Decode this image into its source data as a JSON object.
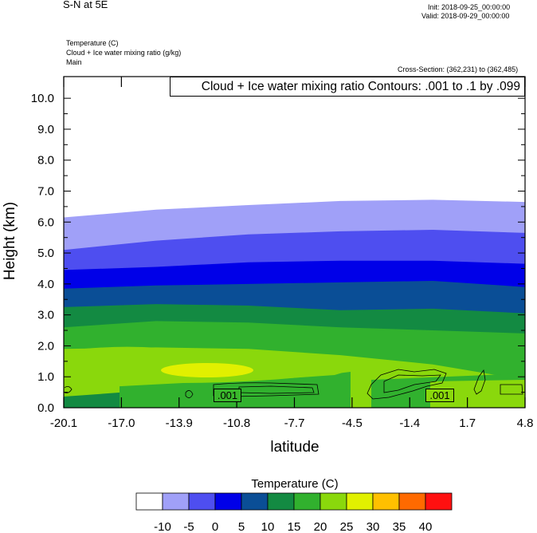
{
  "header": {
    "title": "S-N at 5E",
    "init": "Init: 2018-09-25_00:00:00",
    "valid": "Valid: 2018-09-29_00:00:00",
    "field1": "Temperature   (C)",
    "field2": "Cloud + Ice water mixing ratio   (g/kg)",
    "field3": "Main",
    "cross_section": "Cross-Section: (362,231) to (362,485)"
  },
  "chart_data": {
    "type": "area",
    "title": "Cloud + Ice water mixing ratio Contours: .001 to .1 by .099",
    "xlabel": "latitude",
    "ylabel": "Height (km)",
    "xlim": [
      -20.1,
      4.8
    ],
    "ylim": [
      0,
      10.7
    ],
    "x_ticks": [
      "-20.1",
      "-17.0",
      "-13.9",
      "-10.8",
      "-7.7",
      "-4.5",
      "-1.4",
      "1.7",
      "4.8"
    ],
    "y_ticks": [
      "0.0",
      "1.0",
      "2.0",
      "3.0",
      "4.0",
      "5.0",
      "6.0",
      "7.0",
      "8.0",
      "9.0",
      "10.0"
    ],
    "temperature_bands": [
      {
        "min": -10,
        "max": -5,
        "color": "#a0a0f8",
        "top_km": [
          6.15,
          6.4,
          6.55,
          6.68,
          6.72,
          6.65
        ]
      },
      {
        "min": -5,
        "max": 0,
        "color": "#4e4ef0",
        "top_km": [
          5.1,
          5.4,
          5.6,
          5.7,
          5.75,
          5.65
        ]
      },
      {
        "min": 0,
        "max": 5,
        "color": "#0000e8",
        "top_km": [
          4.45,
          4.55,
          4.7,
          4.75,
          4.75,
          4.65
        ]
      },
      {
        "min": 5,
        "max": 10,
        "color": "#0a4e96",
        "top_km": [
          3.85,
          3.95,
          4.0,
          4.05,
          4.1,
          3.9
        ]
      },
      {
        "min": 10,
        "max": 15,
        "color": "#138a42",
        "top_km": [
          3.25,
          3.35,
          3.3,
          3.15,
          3.2,
          3.05
        ]
      },
      {
        "min": 15,
        "max": 20,
        "color": "#31b12e",
        "top_km": [
          2.6,
          2.8,
          2.75,
          2.6,
          2.5,
          2.4
        ]
      },
      {
        "min": 20,
        "max": 25,
        "color": "#8ad80c",
        "top_km": [
          1.9,
          1.95,
          1.9,
          1.7,
          1.4,
          0.9
        ]
      }
    ],
    "contour_labels": [
      ".001",
      ".001"
    ],
    "colorbar": {
      "title": "Temperature  (C)",
      "labels": [
        "-10",
        "-5",
        "0",
        "5",
        "10",
        "15",
        "20",
        "25",
        "30",
        "35",
        "40"
      ],
      "colors": [
        "#ffffff",
        "#a0a0f8",
        "#4e4ef0",
        "#0000e8",
        "#0a4e96",
        "#138a42",
        "#31b12e",
        "#8ad80c",
        "#e1f000",
        "#ffc000",
        "#ff6a00",
        "#ff1010"
      ]
    }
  }
}
